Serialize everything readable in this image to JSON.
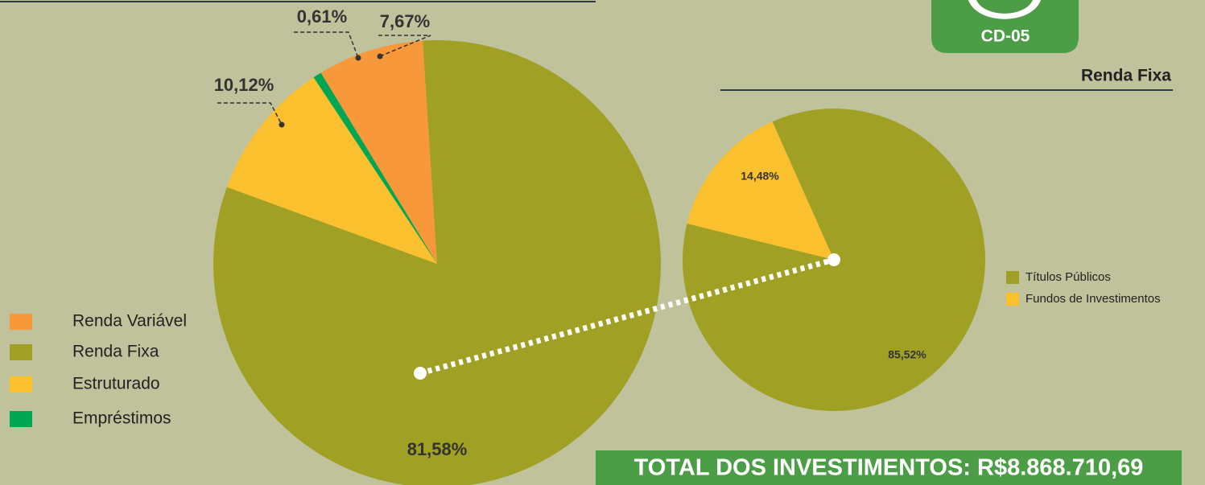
{
  "badge": "CD-05",
  "total": "TOTAL DOS INVESTIMENTOS: R$8.868.710,69",
  "chart_data": [
    {
      "type": "pie",
      "categories": [
        "Renda Variável",
        "Renda Fixa",
        "Estruturado",
        "Empréstimos"
      ],
      "values": [
        7.67,
        81.58,
        10.12,
        0.61
      ],
      "value_labels": [
        "7,67%",
        "81,58%",
        "10,12%",
        "0,61%"
      ],
      "colors": [
        "#f7983a",
        "#a0a025",
        "#fbc02d",
        "#00a651"
      ]
    },
    {
      "type": "pie",
      "title": "Renda Fixa",
      "categories": [
        "Títulos Públicos",
        "Fundos de Investimentos"
      ],
      "values": [
        85.52,
        14.48
      ],
      "value_labels": [
        "85,52%",
        "14,48%"
      ],
      "colors": [
        "#a0a025",
        "#fbc02d"
      ]
    }
  ]
}
